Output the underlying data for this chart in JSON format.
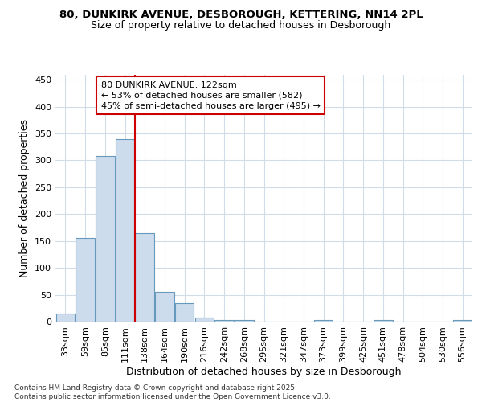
{
  "title1": "80, DUNKIRK AVENUE, DESBOROUGH, KETTERING, NN14 2PL",
  "title2": "Size of property relative to detached houses in Desborough",
  "xlabel": "Distribution of detached houses by size in Desborough",
  "ylabel": "Number of detached properties",
  "bin_labels": [
    "33sqm",
    "59sqm",
    "85sqm",
    "111sqm",
    "138sqm",
    "164sqm",
    "190sqm",
    "216sqm",
    "242sqm",
    "268sqm",
    "295sqm",
    "321sqm",
    "347sqm",
    "373sqm",
    "399sqm",
    "425sqm",
    "451sqm",
    "478sqm",
    "504sqm",
    "530sqm",
    "556sqm"
  ],
  "bar_values": [
    15,
    155,
    308,
    340,
    165,
    55,
    35,
    8,
    3,
    3,
    0,
    0,
    0,
    3,
    0,
    0,
    3,
    0,
    0,
    0,
    3
  ],
  "bar_color": "#ccdcec",
  "bar_edge_color": "#6699bb",
  "vline_color": "#cc0000",
  "annotation_text": "80 DUNKIRK AVENUE: 122sqm\n← 53% of detached houses are smaller (582)\n45% of semi-detached houses are larger (495) →",
  "annotation_box_color": "#cc0000",
  "ylim": [
    0,
    460
  ],
  "yticks": [
    0,
    50,
    100,
    150,
    200,
    250,
    300,
    350,
    400,
    450
  ],
  "footer_text": "Contains HM Land Registry data © Crown copyright and database right 2025.\nContains public sector information licensed under the Open Government Licence v3.0.",
  "bg_color": "#ffffff",
  "grid_color": "#d0dce8",
  "title1_fontsize": 9.5,
  "title2_fontsize": 9,
  "axis_label_fontsize": 9,
  "tick_fontsize": 8,
  "annotation_fontsize": 8
}
